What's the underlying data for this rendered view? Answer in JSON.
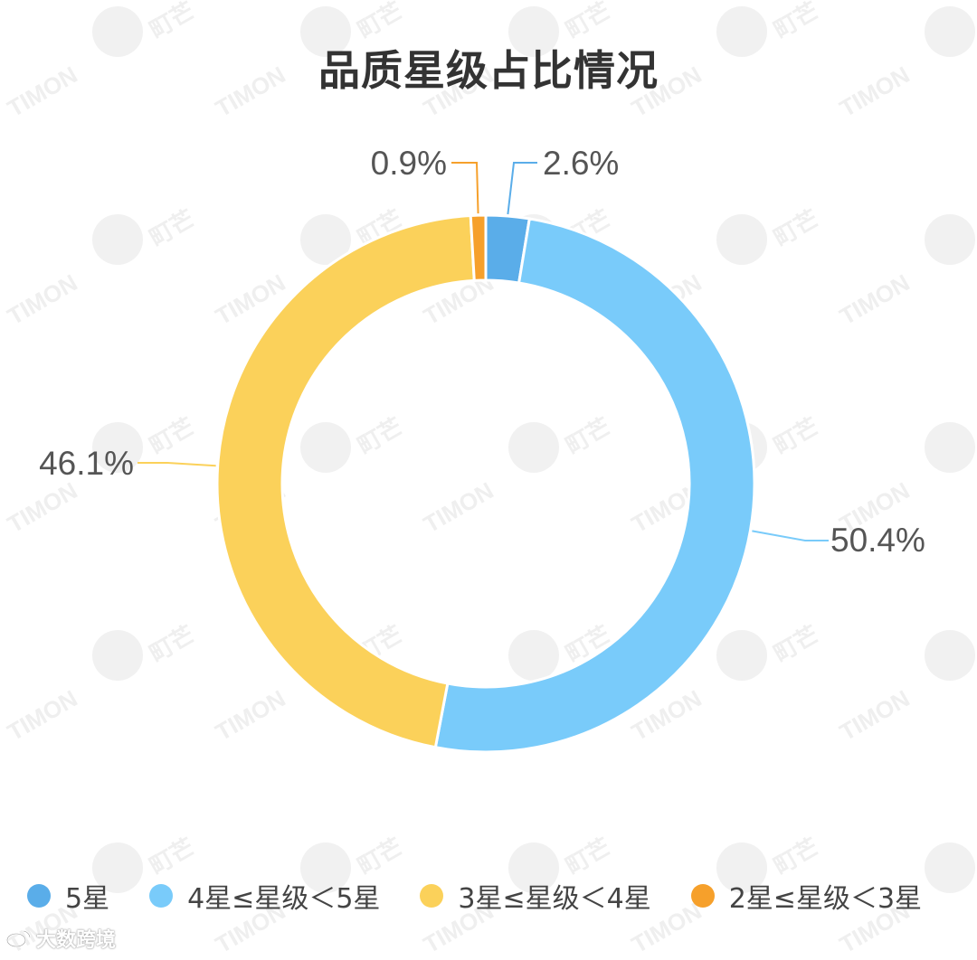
{
  "chart_data": {
    "type": "pie",
    "variant": "donut",
    "title": "品质星级占比情况",
    "series": [
      {
        "name": "5星",
        "value": 2.6,
        "label": "2.6%",
        "color": "#5aade9"
      },
      {
        "name": "4星≤星级＜5星",
        "value": 50.4,
        "label": "50.4%",
        "color": "#79cbfa"
      },
      {
        "name": "3星≤星级＜4星",
        "value": 46.1,
        "label": "46.1%",
        "color": "#fbd15a"
      },
      {
        "name": "2星≤星级＜3星",
        "value": 0.9,
        "label": "0.9%",
        "color": "#f6a02b"
      }
    ],
    "legend_position": "bottom"
  },
  "watermark": {
    "brand": "TIMON",
    "brand_cn": "町芒"
  },
  "credit": {
    "text": "大数跨境"
  }
}
